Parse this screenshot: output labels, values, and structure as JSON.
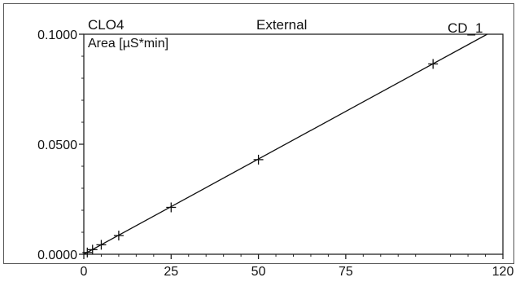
{
  "header": {
    "analyte": "CLO4",
    "method": "External",
    "detector": "CD_1"
  },
  "chart_data": {
    "type": "scatter",
    "ylabel": "Area [µS*min]",
    "xlim": [
      0,
      120
    ],
    "ylim": [
      0,
      0.1
    ],
    "x_ticks": [
      "0",
      "25",
      "50",
      "75",
      "120"
    ],
    "x_tick_values": [
      0,
      25,
      50,
      75,
      120
    ],
    "y_ticks": [
      "0.0000",
      "0.0500",
      "0.1000"
    ],
    "y_tick_values": [
      0,
      0.05,
      0.1
    ],
    "grid": false,
    "series": [
      {
        "points": [
          {
            "x": 1,
            "y": 0.0008
          },
          {
            "x": 2.5,
            "y": 0.0021
          },
          {
            "x": 5,
            "y": 0.0043
          },
          {
            "x": 10,
            "y": 0.0085
          },
          {
            "x": 25,
            "y": 0.0213
          },
          {
            "x": 50,
            "y": 0.043
          },
          {
            "x": 100,
            "y": 0.0865
          }
        ],
        "fit_line": {
          "x_start": 0,
          "y_start": 0.0,
          "x_end": 115.5,
          "y_end": 0.1
        }
      }
    ]
  }
}
